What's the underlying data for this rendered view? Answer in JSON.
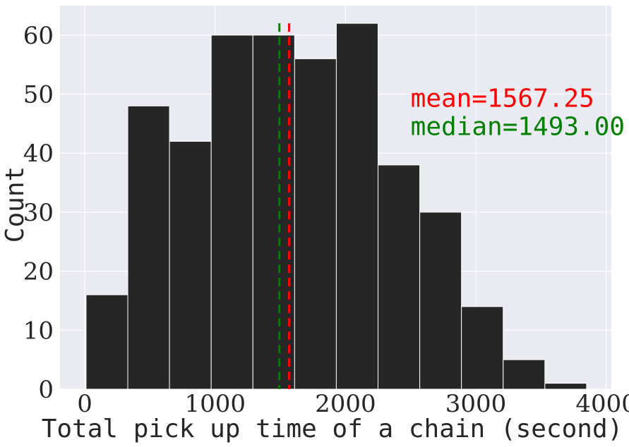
{
  "chart_data": {
    "type": "bar",
    "subtype": "histogram",
    "title": "",
    "xlabel": "Total pick up time of a chain (second)",
    "ylabel": "Count",
    "xlim": [
      -190,
      4040
    ],
    "ylim": [
      0,
      65
    ],
    "xticks": [
      0,
      1000,
      2000,
      3000,
      4000
    ],
    "yticks": [
      0,
      10,
      20,
      30,
      40,
      50,
      60
    ],
    "grid": true,
    "background_color": "#eaeaf2",
    "bar_color": "#262626",
    "bins": [
      {
        "x0": 10,
        "x1": 330,
        "count": 16
      },
      {
        "x0": 330,
        "x1": 650,
        "count": 48
      },
      {
        "x0": 650,
        "x1": 970,
        "count": 42
      },
      {
        "x0": 970,
        "x1": 1290,
        "count": 60
      },
      {
        "x0": 1290,
        "x1": 1610,
        "count": 60
      },
      {
        "x0": 1610,
        "x1": 1930,
        "count": 56
      },
      {
        "x0": 1930,
        "x1": 2250,
        "count": 62
      },
      {
        "x0": 2250,
        "x1": 2570,
        "count": 38
      },
      {
        "x0": 2570,
        "x1": 2890,
        "count": 30
      },
      {
        "x0": 2890,
        "x1": 3210,
        "count": 14
      },
      {
        "x0": 3210,
        "x1": 3530,
        "count": 5
      },
      {
        "x0": 3530,
        "x1": 3850,
        "count": 1
      }
    ],
    "reference_lines": [
      {
        "x": 1567.25,
        "color": "#ff0000",
        "style": "dashed",
        "y_top": 62
      },
      {
        "x": 1493.0,
        "color": "#008000",
        "style": "dashed",
        "y_top": 62
      }
    ],
    "annotations": [
      {
        "text": "mean=1567.25",
        "color": "#ff0000",
        "x": 2500,
        "y": 49.3
      },
      {
        "text": "median=1493.00",
        "color": "#008000",
        "x": 2500,
        "y": 44.5
      }
    ]
  }
}
